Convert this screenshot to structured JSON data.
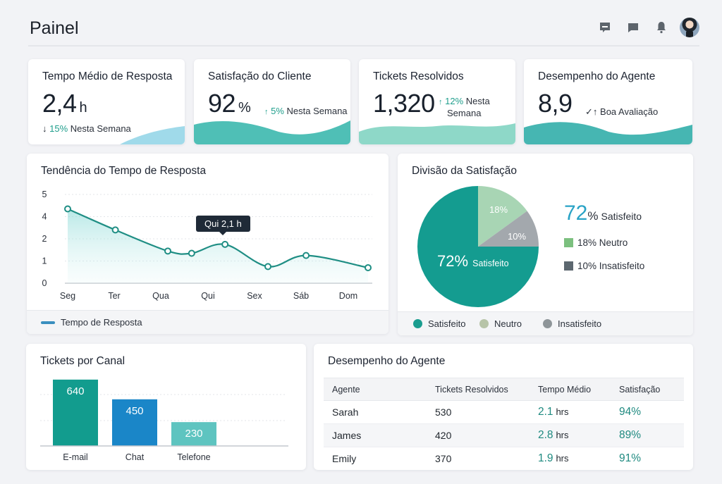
{
  "header": {
    "title": "Painel",
    "icons": [
      "message-icon",
      "chat-icon",
      "bell-icon",
      "avatar"
    ]
  },
  "kpis": [
    {
      "title": "Tempo Médio de Resposta",
      "value": "2,4",
      "unit": "h",
      "trend_arrow": "↓",
      "trend_pct": "15%",
      "trend_text": "Nesta Semana",
      "wave_color": "#8fd3e6"
    },
    {
      "title": "Satisfação do Cliente",
      "value": "92",
      "unit": "%",
      "trend_arrow": "↑",
      "trend_pct": "5%",
      "trend_text": "Nesta Semana",
      "wave_color": "#4fbfb6"
    },
    {
      "title": "Tickets Resolvidos",
      "value": "1,320",
      "unit": "",
      "trend_arrow": "↑",
      "trend_pct": "12%",
      "trend_text_line1": "Nesta",
      "trend_text_line2": "Semana",
      "wave_color": "#8ed8c8"
    },
    {
      "title": "Desempenho do Agente",
      "value": "8,9",
      "unit": "",
      "trend_arrow": "✓↑",
      "trend_text": "Boa Avaliação",
      "wave_color": "#46b6b2"
    }
  ],
  "trend_panel": {
    "title": "Tendência do Tempo de Resposta",
    "tooltip": "Qui 2,1 h",
    "legend": "Tempo de Resposta"
  },
  "satisfaction_panel": {
    "title": "Divisão da Satisfação",
    "big_value": "72",
    "big_pct": "%",
    "big_label": "Satisfeito",
    "inner_label_value": "72%",
    "inner_label_text": "Satisfeito",
    "slice_label_neutral": "18%",
    "slice_label_unsat": "10%",
    "side_legend": [
      {
        "text": "18% Neutro",
        "color": "#7cc07f"
      },
      {
        "text": "10% Insatisfeito",
        "color": "#5d6870"
      }
    ],
    "footer_legend": [
      {
        "label": "Satisfeito",
        "color": "#1a9d8f"
      },
      {
        "label": "Neutro",
        "color": "#b7c4a8"
      },
      {
        "label": "Insatisfeito",
        "color": "#8e9599"
      }
    ]
  },
  "channel_panel": {
    "title": "Tickets por Canal"
  },
  "agent_panel": {
    "title": "Desempenho do Agente",
    "columns": [
      "Agente",
      "Tickets Resolvidos",
      "Tempo Médio",
      "Satisfação"
    ],
    "rows": [
      {
        "agent": "Sarah",
        "tickets": "530",
        "time": "2.1",
        "time_unit": "hrs",
        "satisfaction": "94%"
      },
      {
        "agent": "James",
        "tickets": "420",
        "time": "2.8",
        "time_unit": "hrs",
        "satisfaction": "89%"
      },
      {
        "agent": "Emily",
        "tickets": "370",
        "time": "1.9",
        "time_unit": "hrs",
        "satisfaction": "91%"
      }
    ]
  },
  "chart_data": [
    {
      "type": "line",
      "title": "Tendência do Tempo de Resposta",
      "xlabel": "",
      "ylabel": "",
      "categories": [
        "Seg",
        "Ter",
        "Qua",
        "Qui",
        "Sex",
        "Sáb",
        "Dom"
      ],
      "y_tick_labels": [
        "0",
        "1",
        "2",
        "4",
        "5"
      ],
      "ylim": [
        0,
        4
      ],
      "series": [
        {
          "name": "Tempo de Resposta",
          "x": [
            0,
            1,
            2.1,
            2.6,
            3.3,
            4.2,
            5.0,
            6.3
          ],
          "values": [
            3.35,
            2.4,
            1.45,
            1.35,
            1.75,
            0.75,
            1.25,
            0.7
          ],
          "color": "#1f8e84"
        }
      ],
      "grid": true,
      "legend": "bottom-left",
      "annotation": "Qui 2,1 h"
    },
    {
      "type": "pie",
      "title": "Divisão da Satisfação",
      "slices": [
        {
          "label": "Satisfeito",
          "value": 72,
          "color": "#149c90"
        },
        {
          "label": "Neutro",
          "value": 18,
          "color": "#a8d5b4"
        },
        {
          "label": "Insatisfeito",
          "value": 10,
          "color": "#a3a8ad"
        }
      ],
      "legend": "bottom"
    },
    {
      "type": "bar",
      "title": "Tickets por Canal",
      "categories": [
        "E-mail",
        "Chat",
        "Telefone"
      ],
      "values": [
        640,
        450,
        230
      ],
      "colors": [
        "#129c8e",
        "#1a86c8",
        "#5ec4c0"
      ],
      "ylim": [
        0,
        700
      ],
      "grid": true
    }
  ]
}
